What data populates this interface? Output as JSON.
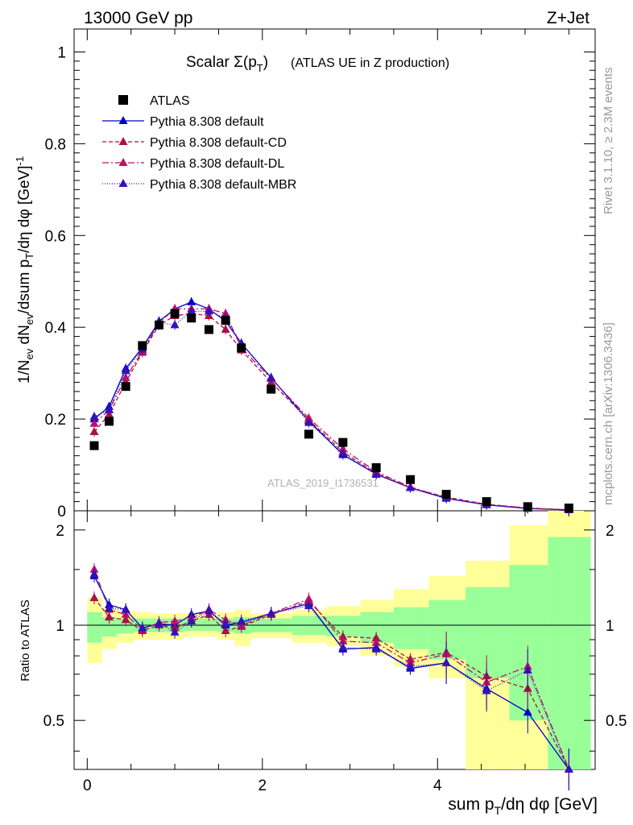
{
  "header": {
    "left": "13000 GeV pp",
    "right": "Z+Jet"
  },
  "side_labels": {
    "rivet": "Rivet 3.1.10, ≥ 2.3M events",
    "mcplots": "mcplots.cern.ch [arXiv:1306.3436]"
  },
  "watermark": "ATLAS_2019_I1736531",
  "chart_data": {
    "type": "scatter",
    "title": "Scalar Σ(p_T) (ATLAS UE in Z production)",
    "xlabel": "sum p_T/dη dφ [GeV]",
    "ylabel": "1/N_ev dN_ev/dsum p_T/dη dφ [GeV]^-1",
    "ratio_ylabel": "Ratio to ATLAS",
    "xlim": [
      -0.15,
      5.8
    ],
    "ylim": [
      0,
      1.05
    ],
    "ratio_ylim": [
      0.35,
      2.3
    ],
    "x_ticks": [
      "0",
      "2",
      "4"
    ],
    "y_ticks": [
      "0",
      "0.2",
      "0.4",
      "0.6",
      "0.8",
      "1"
    ],
    "ratio_ticks": [
      "0.5",
      "1",
      "2"
    ],
    "legend_position": "top-left",
    "legend": [
      "ATLAS",
      "Pythia 8.308 default",
      "Pythia 8.308 default-CD",
      "Pythia 8.308 default-DL",
      "Pythia 8.308 default-MBR"
    ],
    "x": [
      0.08,
      0.25,
      0.44,
      0.63,
      0.82,
      1.0,
      1.19,
      1.39,
      1.58,
      1.76,
      2.1,
      2.53,
      2.92,
      3.3,
      3.69,
      4.1,
      4.56,
      5.03,
      5.5
    ],
    "bin_edges": [
      0.0,
      0.17,
      0.34,
      0.53,
      0.72,
      0.91,
      1.1,
      1.29,
      1.49,
      1.68,
      1.86,
      2.34,
      2.73,
      3.12,
      3.5,
      3.9,
      4.32,
      4.82,
      5.26,
      5.75
    ],
    "atlas": [
      0.142,
      0.195,
      0.271,
      0.36,
      0.405,
      0.43,
      0.42,
      0.395,
      0.415,
      0.355,
      0.265,
      0.167,
      0.149,
      0.094,
      0.068,
      0.036,
      0.02,
      0.009,
      0.006
    ],
    "series": [
      {
        "name": "Pythia 8.308 default",
        "color": "#0000cc",
        "dash": "solid",
        "values": [
          0.2,
          0.227,
          0.31,
          0.356,
          0.413,
          0.44,
          0.455,
          0.44,
          0.413,
          0.365,
          0.29,
          0.196,
          0.122,
          0.08,
          0.05,
          0.027,
          0.013,
          0.005,
          0.002
        ]
      },
      {
        "name": "Pythia 8.308 default-CD",
        "color": "#aa1144",
        "dash": "5,3",
        "values": [
          0.172,
          0.21,
          0.28,
          0.345,
          0.405,
          0.425,
          0.43,
          0.425,
          0.395,
          0.35,
          0.28,
          0.198,
          0.128,
          0.082,
          0.05,
          0.03,
          0.014,
          0.006,
          0.002
        ]
      },
      {
        "name": "Pythia 8.308 default-DL",
        "color": "#bb1166",
        "dash": "8,3,2,3",
        "values": [
          0.19,
          0.22,
          0.29,
          0.348,
          0.41,
          0.44,
          0.44,
          0.44,
          0.43,
          0.355,
          0.288,
          0.202,
          0.135,
          0.085,
          0.052,
          0.028,
          0.014,
          0.006,
          0.002
        ]
      },
      {
        "name": "Pythia 8.308 default-MBR",
        "color": "#3311bb",
        "dash": "1,2",
        "values": [
          0.205,
          0.22,
          0.305,
          0.352,
          0.41,
          0.405,
          0.435,
          0.435,
          0.42,
          0.365,
          0.29,
          0.192,
          0.125,
          0.079,
          0.05,
          0.027,
          0.013,
          0.005,
          0.002
        ]
      }
    ],
    "ratio_series": [
      [
        1.43,
        1.16,
        1.12,
        0.98,
        1.01,
        1.0,
        1.08,
        1.11,
        1.0,
        1.02,
        1.09,
        1.17,
        0.84,
        0.85,
        0.73,
        0.76,
        0.63,
        0.53,
        0.35
      ],
      [
        1.22,
        1.06,
        1.04,
        0.96,
        1.0,
        0.98,
        1.03,
        1.08,
        0.96,
        0.99,
        1.08,
        1.19,
        0.92,
        0.91,
        0.78,
        0.82,
        0.69,
        0.63,
        0.35
      ],
      [
        1.5,
        1.12,
        1.08,
        0.97,
        1.02,
        1.03,
        1.05,
        1.12,
        1.04,
        1.0,
        1.09,
        1.21,
        0.89,
        0.88,
        0.76,
        0.81,
        0.66,
        0.74,
        0.35
      ],
      [
        1.45,
        1.13,
        1.12,
        0.98,
        1.01,
        0.95,
        1.03,
        1.11,
        1.01,
        1.03,
        1.09,
        1.15,
        0.85,
        0.84,
        0.74,
        0.76,
        0.62,
        0.72,
        0.35
      ]
    ],
    "band_green": [
      [
        0.88,
        1.1
      ],
      [
        0.92,
        1.06
      ],
      [
        0.94,
        1.05
      ],
      [
        0.95,
        1.05
      ],
      [
        0.95,
        1.05
      ],
      [
        0.95,
        1.05
      ],
      [
        0.96,
        1.05
      ],
      [
        0.96,
        1.05
      ],
      [
        0.95,
        1.05
      ],
      [
        0.94,
        1.06
      ],
      [
        0.95,
        1.05
      ],
      [
        0.93,
        1.07
      ],
      [
        0.92,
        1.07
      ],
      [
        0.88,
        1.1
      ],
      [
        0.84,
        1.14
      ],
      [
        0.78,
        1.2
      ],
      [
        0.68,
        1.32
      ],
      [
        0.5,
        1.55
      ],
      [
        0.35,
        1.9
      ]
    ],
    "band_yellow": [
      [
        0.76,
        1.22
      ],
      [
        0.84,
        1.14
      ],
      [
        0.88,
        1.11
      ],
      [
        0.9,
        1.1
      ],
      [
        0.9,
        1.09
      ],
      [
        0.9,
        1.09
      ],
      [
        0.92,
        1.09
      ],
      [
        0.92,
        1.08
      ],
      [
        0.9,
        1.1
      ],
      [
        0.86,
        1.12
      ],
      [
        0.91,
        1.09
      ],
      [
        0.88,
        1.12
      ],
      [
        0.86,
        1.15
      ],
      [
        0.8,
        1.2
      ],
      [
        0.74,
        1.3
      ],
      [
        0.68,
        1.43
      ],
      [
        0.35,
        1.6
      ],
      [
        0.35,
        2.07
      ],
      [
        0.35,
        2.3
      ]
    ]
  }
}
